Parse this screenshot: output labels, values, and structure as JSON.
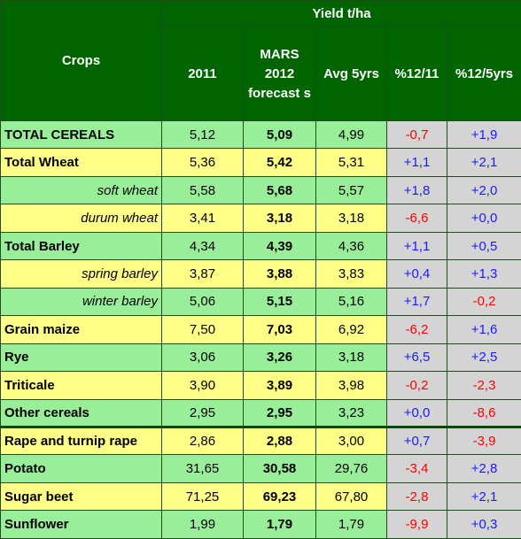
{
  "header": {
    "crops_label": "Crops",
    "group_label": "Yield t/ha",
    "columns": [
      "2011",
      "MARS 2012 forecast s",
      "Avg 5yrs",
      "%12/11",
      "%12/5yrs"
    ]
  },
  "colors": {
    "header_bg": "#006400",
    "green_row": "#99ee99",
    "yellow_row": "#ffff88",
    "pct_bg": "#d4d4d4",
    "positive": "#1a1aff",
    "negative": "#ff0000"
  },
  "rows": [
    {
      "crop": "TOTAL CEREALS",
      "y2011": "5,12",
      "f2012": "5,09",
      "avg5": "4,99",
      "p1211": "-0,7",
      "p125": "+1,9"
    },
    {
      "crop": "Total Wheat",
      "y2011": "5,36",
      "f2012": "5,42",
      "avg5": "5,31",
      "p1211": "+1,1",
      "p125": "+2,1"
    },
    {
      "crop": "soft wheat",
      "y2011": "5,58",
      "f2012": "5,68",
      "avg5": "5,57",
      "p1211": "+1,8",
      "p125": "+2,0"
    },
    {
      "crop": "durum wheat",
      "y2011": "3,41",
      "f2012": "3,18",
      "avg5": "3,18",
      "p1211": "-6,6",
      "p125": "+0,0"
    },
    {
      "crop": "Total Barley",
      "y2011": "4,34",
      "f2012": "4,39",
      "avg5": "4,36",
      "p1211": "+1,1",
      "p125": "+0,5"
    },
    {
      "crop": "spring barley",
      "y2011": "3,87",
      "f2012": "3,88",
      "avg5": "3,83",
      "p1211": "+0,4",
      "p125": "+1,3"
    },
    {
      "crop": "winter barley",
      "y2011": "5,06",
      "f2012": "5,15",
      "avg5": "5,16",
      "p1211": "+1,7",
      "p125": "-0,2"
    },
    {
      "crop": "Grain maize",
      "y2011": "7,50",
      "f2012": "7,03",
      "avg5": "6,92",
      "p1211": "-6,2",
      "p125": "+1,6"
    },
    {
      "crop": "Rye",
      "y2011": "3,06",
      "f2012": "3,26",
      "avg5": "3,18",
      "p1211": "+6,5",
      "p125": "+2,5"
    },
    {
      "crop": "Triticale",
      "y2011": "3,90",
      "f2012": "3,89",
      "avg5": "3,98",
      "p1211": "-0,2",
      "p125": "-2,3"
    },
    {
      "crop": "Other cereals",
      "y2011": "2,95",
      "f2012": "2,95",
      "avg5": "3,23",
      "p1211": "+0,0",
      "p125": "-8,6"
    },
    {
      "crop": "Rape and turnip rape",
      "y2011": "2,86",
      "f2012": "2,88",
      "avg5": "3,00",
      "p1211": "+0,7",
      "p125": "-3,9"
    },
    {
      "crop": "Potato",
      "y2011": "31,65",
      "f2012": "30,58",
      "avg5": "29,76",
      "p1211": "-3,4",
      "p125": "+2,8"
    },
    {
      "crop": "Sugar beet",
      "y2011": "71,25",
      "f2012": "69,23",
      "avg5": "67,80",
      "p1211": "-2,8",
      "p125": "+2,1"
    },
    {
      "crop": "Sunflower",
      "y2011": "1,99",
      "f2012": "1,79",
      "avg5": "1,79",
      "p1211": "-9,9",
      "p125": "+0,3"
    }
  ]
}
